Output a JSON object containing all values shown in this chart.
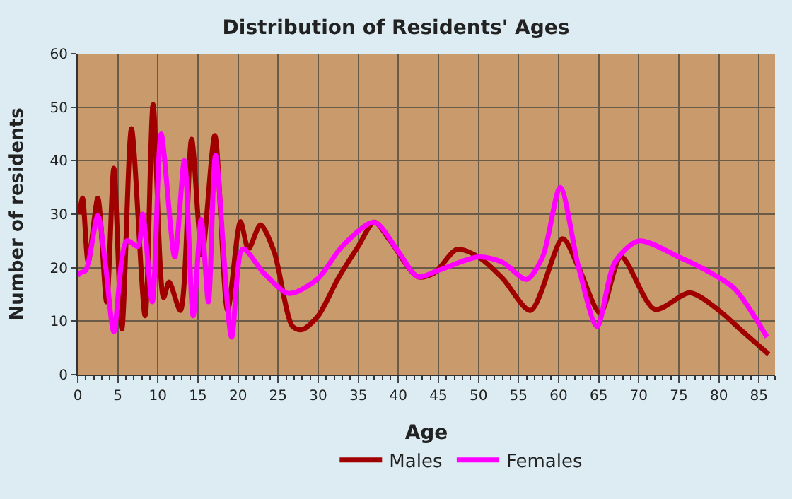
{
  "chart_data": {
    "type": "line",
    "title": "Distribution of Residents' Ages",
    "xlabel": "Age",
    "ylabel": "Number of residents",
    "xlim": [
      0,
      87
    ],
    "xticks": [
      0,
      5,
      10,
      15,
      20,
      25,
      30,
      35,
      40,
      45,
      50,
      55,
      60,
      65,
      70,
      75,
      80,
      85
    ],
    "ylim": [
      0,
      60
    ],
    "yticks": [
      0,
      10,
      20,
      30,
      40,
      50,
      60
    ],
    "grid": true,
    "legend": "bottom",
    "marker": "none",
    "line_style": "solid",
    "series": [
      {
        "name": "Males",
        "color": "#a00000",
        "x": [
          0.2,
          0.6,
          1.3,
          2.5,
          3.6,
          4.5,
          5.5,
          6.7,
          8.4,
          9.4,
          10.7,
          11.4,
          12.8,
          14.2,
          15.5,
          17.1,
          18.7,
          20.3,
          21.3,
          22.8,
          24.5,
          26.8,
          28,
          30,
          32.5,
          35,
          37,
          39,
          42.4,
          44.5,
          47.3,
          50,
          53,
          56.5,
          60.5,
          62.5,
          65.2,
          67.8,
          72,
          76.4,
          80,
          83,
          86.2
        ],
        "values": [
          30,
          33,
          21,
          33,
          13.6,
          38.6,
          8.5,
          46,
          11,
          50.5,
          14.4,
          17.3,
          12,
          44,
          22.4,
          44.7,
          12,
          28.6,
          23.5,
          28,
          23,
          9,
          8.4,
          11,
          18,
          24,
          28.5,
          25,
          18.3,
          19,
          23.4,
          22,
          18,
          12,
          25.4,
          20,
          11.5,
          22,
          12.2,
          15.3,
          12,
          8,
          3.8
        ]
      },
      {
        "name": "Females",
        "color": "#ff00ff",
        "x": [
          0,
          0.3,
          1,
          2.5,
          3.5,
          4.5,
          6.1,
          7.5,
          8.1,
          9.3,
          10.4,
          12.1,
          13.3,
          14.4,
          15.4,
          16.3,
          17.2,
          19.2,
          20.6,
          23.2,
          26,
          27,
          30,
          33,
          37,
          40,
          42.4,
          45,
          50,
          53,
          56,
          58,
          60.2,
          62.5,
          64.8,
          67,
          70,
          75,
          79,
          82,
          86
        ],
        "values": [
          18.5,
          19,
          19.5,
          29.7,
          20,
          8,
          25,
          24,
          30,
          13.6,
          45,
          22,
          40,
          11,
          29,
          13.6,
          41,
          7,
          23.5,
          19,
          15.3,
          15.3,
          18,
          24,
          28.5,
          23,
          18.3,
          19.5,
          22,
          21,
          17.8,
          22,
          35,
          20,
          9,
          21,
          25,
          22,
          19,
          16,
          7
        ]
      }
    ]
  }
}
